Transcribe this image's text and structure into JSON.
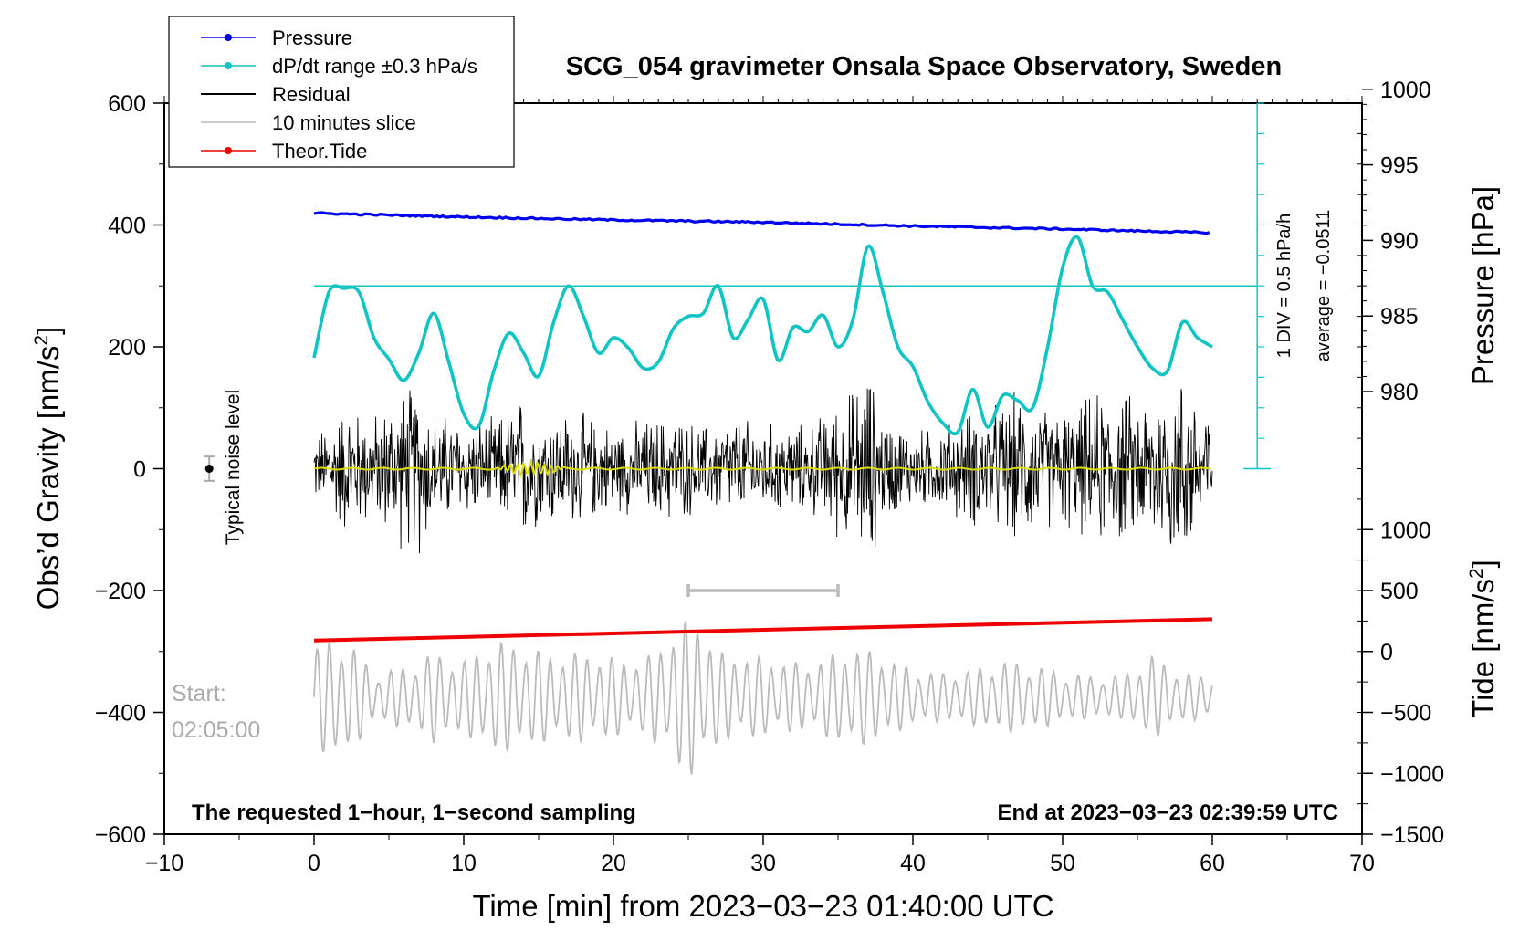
{
  "chart_data": {
    "type": "line",
    "title": "SCG_054 gravimeter Onsala Space Observatory, Sweden",
    "xlabel": "Time [min] from 2023−03−23 01:40:00 UTC",
    "ylabel_left_prefix": "Obs’d Gravity [nm/s",
    "ylabel_left_sup": "2",
    "ylabel_left_suffix": "]",
    "ylabel_pressure": "Pressure [hPa]",
    "ylabel_tide_prefix": "Tide [nm/s",
    "ylabel_tide_sup": "2",
    "ylabel_tide_suffix": "]",
    "xlim": [
      -10,
      70
    ],
    "ylim": [
      -600,
      600
    ],
    "x_ticks": [
      -10,
      0,
      10,
      20,
      30,
      40,
      50,
      60,
      70
    ],
    "x_tick_labels": [
      "−10",
      "0",
      "10",
      "20",
      "30",
      "40",
      "50",
      "60",
      "70"
    ],
    "y_ticks": [
      -600,
      -400,
      -200,
      0,
      200,
      400,
      600
    ],
    "y_tick_labels": [
      "−600",
      "−400",
      "−200",
      "0",
      "200",
      "400",
      "600"
    ],
    "pressure_ticks": [
      980,
      985,
      990,
      995,
      1000
    ],
    "pressure_tick_labels": [
      "980",
      "985",
      "990",
      "995",
      "1000"
    ],
    "pressure_axis": {
      "value_at_gravity_0": 974.9,
      "hpa_per_gravity_unit": 0.0403
    },
    "tide_ticks": [
      -1500,
      -1000,
      -500,
      0,
      500,
      1000
    ],
    "tide_tick_labels": [
      "−1500",
      "−1000",
      "−500",
      "0",
      "500",
      "1000"
    ],
    "tide_axis": {
      "gravity_at_tide_0": -300,
      "gravity_per_tide_unit": 0.2
    },
    "legend": [
      {
        "name": "Pressure",
        "color": "#0000ee",
        "marker": true
      },
      {
        "name": "dP/dt range ±0.3 hPa/s",
        "color": "#11c4c4",
        "marker": true
      },
      {
        "name": "Residual",
        "color": "#000000",
        "marker": false
      },
      {
        "name": "10 minutes slice",
        "color": "#bbbbbb",
        "marker": false
      },
      {
        "name": "Theor.Tide",
        "color": "#ee0000",
        "marker": true
      }
    ],
    "series": [
      {
        "name": "Pressure",
        "color": "#0000ee",
        "axis": "pressure",
        "x": [
          0,
          10,
          20,
          30,
          40,
          50,
          60
        ],
        "y": [
          991.8,
          991.55,
          991.35,
          991.2,
          990.95,
          990.75,
          990.5
        ]
      },
      {
        "name": "dP/dt",
        "color": "#11c4c4",
        "axis": "gravity",
        "x": [
          0,
          1,
          2,
          3,
          4,
          5,
          6,
          7,
          8,
          9,
          10,
          11,
          12,
          13,
          14,
          15,
          16,
          17,
          18,
          19,
          20,
          21,
          22,
          23,
          24,
          25,
          26,
          27,
          28,
          29,
          30,
          31,
          32,
          33,
          34,
          35,
          36,
          37,
          38,
          39,
          40,
          41,
          42,
          43,
          44,
          45,
          46,
          47,
          48,
          49,
          50,
          51,
          52,
          53,
          54,
          55,
          56,
          57,
          58,
          59,
          60
        ],
        "y": [
          182,
          290,
          296,
          290,
          215,
          180,
          145,
          190,
          255,
          175,
          90,
          70,
          160,
          222,
          190,
          152,
          240,
          300,
          250,
          190,
          215,
          198,
          165,
          175,
          230,
          250,
          255,
          300,
          215,
          245,
          278,
          178,
          232,
          225,
          252,
          200,
          245,
          365,
          290,
          200,
          168,
          110,
          75,
          60,
          130,
          68,
          120,
          112,
          100,
          200,
          330,
          380,
          300,
          290,
          245,
          200,
          165,
          160,
          240,
          215,
          200
        ]
      },
      {
        "name": "Residual",
        "color": "#000000",
        "axis": "gravity",
        "x": [
          0,
          2,
          4,
          6,
          7,
          8,
          10,
          12,
          14,
          15,
          16,
          18,
          20,
          22,
          24,
          26,
          28,
          30,
          33,
          36,
          37,
          38,
          40,
          42,
          44,
          46,
          47,
          49,
          51,
          53,
          55,
          57,
          58,
          60
        ],
        "envelope": [
          60,
          120,
          100,
          150,
          165,
          110,
          90,
          90,
          140,
          100,
          110,
          100,
          80,
          90,
          100,
          80,
          95,
          85,
          80,
          150,
          190,
          100,
          70,
          80,
          110,
          120,
          140,
          110,
          120,
          150,
          130,
          170,
          180,
          110
        ]
      },
      {
        "name": "Residual smooth",
        "color": "#dddd00",
        "axis": "gravity",
        "x": [
          0,
          60
        ],
        "y": [
          0,
          0
        ]
      },
      {
        "name": "10 minutes slice",
        "color": "#bbbbbb",
        "axis": "gravity",
        "x": [
          0,
          2,
          4,
          6,
          8,
          10,
          12,
          14,
          16,
          18,
          20,
          22,
          24,
          25.5,
          27,
          30,
          33,
          36,
          38,
          40,
          42,
          44,
          46,
          48,
          50,
          52,
          54,
          56,
          58,
          60
        ],
        "center": -375,
        "envelope": [
          85,
          105,
          40,
          50,
          75,
          60,
          95,
          85,
          70,
          75,
          65,
          60,
          110,
          140,
          75,
          65,
          55,
          85,
          70,
          45,
          40,
          45,
          60,
          55,
          40,
          35,
          35,
          70,
          40,
          35
        ]
      },
      {
        "name": "Theor.Tide",
        "color": "#ee0000",
        "axis": "tide",
        "x": [
          0,
          60
        ],
        "y": [
          90,
          265
        ]
      }
    ],
    "reference_line": {
      "y": 300,
      "color": "#11c4c4"
    },
    "scale_bar_label": "1 DIV = 0.5 hPa/h",
    "average_label": "average = −0.0511",
    "scale_bar": {
      "x": 63,
      "y_bottom": 0,
      "y_top": 600,
      "division_count": 12
    },
    "noise_label": "Typical noise level",
    "noise_point": {
      "x": -7,
      "y": 0,
      "err": 20
    },
    "slice_bracket": {
      "x_start": 25,
      "x_end": 35,
      "y": -200
    },
    "start_label_1": "Start:",
    "start_label_2": "02:05:00",
    "footer_left": "The requested 1−hour, 1−second sampling",
    "footer_right": "End at 2023−03−23 02:39:59 UTC"
  }
}
